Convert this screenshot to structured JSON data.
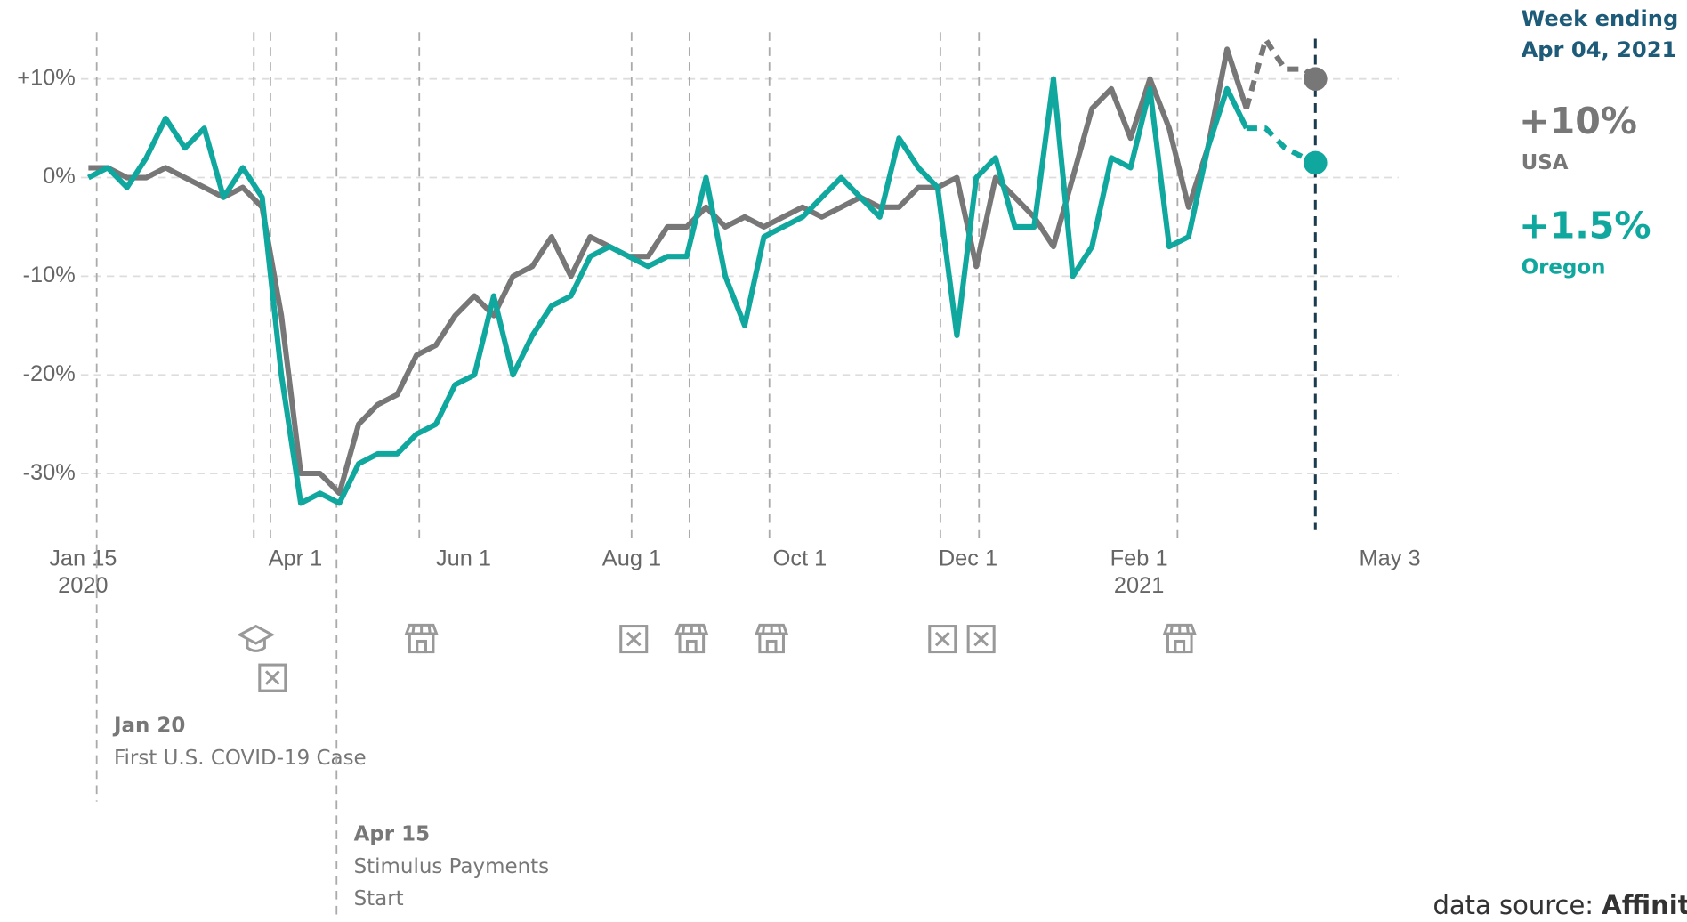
{
  "chart_data": {
    "type": "line",
    "x": [
      "2020-01-15",
      "2020-01-22",
      "2020-01-29",
      "2020-02-05",
      "2020-02-12",
      "2020-02-19",
      "2020-02-26",
      "2020-03-04",
      "2020-03-11",
      "2020-03-18",
      "2020-03-25",
      "2020-04-01",
      "2020-04-08",
      "2020-04-15",
      "2020-04-22",
      "2020-04-29",
      "2020-05-06",
      "2020-05-13",
      "2020-05-20",
      "2020-05-27",
      "2020-06-03",
      "2020-06-10",
      "2020-06-17",
      "2020-06-24",
      "2020-07-01",
      "2020-07-08",
      "2020-07-15",
      "2020-07-22",
      "2020-07-29",
      "2020-08-05",
      "2020-08-12",
      "2020-08-19",
      "2020-08-26",
      "2020-09-02",
      "2020-09-09",
      "2020-09-16",
      "2020-09-23",
      "2020-09-30",
      "2020-10-07",
      "2020-10-14",
      "2020-10-21",
      "2020-10-28",
      "2020-11-04",
      "2020-11-11",
      "2020-11-18",
      "2020-11-25",
      "2020-12-02",
      "2020-12-09",
      "2020-12-16",
      "2020-12-23",
      "2020-12-30",
      "2021-01-06",
      "2021-01-13",
      "2021-01-20",
      "2021-01-27",
      "2021-02-03",
      "2021-02-10",
      "2021-02-17",
      "2021-02-24",
      "2021-03-03",
      "2021-03-10",
      "2021-03-17",
      "2021-03-24",
      "2021-03-31",
      "2021-04-04"
    ],
    "series": [
      {
        "name": "USA",
        "color": "#777777",
        "end_label": "+10%",
        "values": [
          1,
          1,
          0,
          0,
          1,
          0,
          -1,
          -2,
          -1,
          -3,
          -14,
          -30,
          -30,
          -32,
          -25,
          -23,
          -22,
          -18,
          -17,
          -14,
          -12,
          -14,
          -10,
          -9,
          -6,
          -10,
          -6,
          -7,
          -8,
          -8,
          -5,
          -5,
          -3,
          -5,
          -4,
          -5,
          -4,
          -3,
          -4,
          -3,
          -2,
          -3,
          -3,
          -1,
          -1,
          0,
          -9,
          0,
          -2,
          -4,
          -7,
          0,
          7,
          9,
          4,
          10,
          5,
          -3,
          3,
          13,
          7,
          14,
          11,
          11,
          10
        ]
      },
      {
        "name": "Oregon",
        "color": "#10a89e",
        "end_label": "+1.5%",
        "values": [
          0,
          1,
          -1,
          2,
          6,
          3,
          5,
          -2,
          1,
          -2,
          -20,
          -33,
          -32,
          -33,
          -29,
          -28,
          -28,
          -26,
          -25,
          -21,
          -20,
          -12,
          -20,
          -16,
          -13,
          -12,
          -8,
          -7,
          -8,
          -9,
          -8,
          -8,
          0,
          -10,
          -15,
          -6,
          -5,
          -4,
          -2,
          0,
          -2,
          -4,
          4,
          1,
          -1,
          -16,
          0,
          2,
          -5,
          -5,
          10,
          -10,
          -7,
          2,
          1,
          9,
          -7,
          -6,
          3,
          9,
          5,
          5,
          3,
          2,
          1.5
        ]
      }
    ],
    "dashed_from": "2021-03-10",
    "xlim": [
      "2020-01-15",
      "2021-05-03"
    ],
    "xticks": [
      {
        "value": "2020-01-15",
        "label": "Jan 15\n2020"
      },
      {
        "value": "2020-04-01",
        "label": "Apr 1"
      },
      {
        "value": "2020-06-01",
        "label": "Jun 1"
      },
      {
        "value": "2020-08-01",
        "label": "Aug 1"
      },
      {
        "value": "2020-10-01",
        "label": "Oct 1"
      },
      {
        "value": "2020-12-01",
        "label": "Dec 1"
      },
      {
        "value": "2021-02-01",
        "label": "Feb 1\n2021"
      },
      {
        "value": "2021-05-03",
        "label": "May 3"
      }
    ],
    "ylim": [
      -35,
      15
    ],
    "yticks": [
      {
        "value": 10,
        "label": "+10%"
      },
      {
        "value": 0,
        "label": "0%"
      },
      {
        "value": -10,
        "label": "-10%"
      },
      {
        "value": -20,
        "label": "-20%"
      },
      {
        "value": -30,
        "label": "-30%"
      }
    ],
    "grid": true,
    "events": [
      {
        "date": "2020-01-18",
        "title": "Jan 20",
        "lines": [
          "First U.S. COVID-19 Case"
        ]
      },
      {
        "date": "2020-03-15",
        "icon": "school"
      },
      {
        "date": "2020-03-21",
        "icon": "closed"
      },
      {
        "date": "2020-04-14",
        "title": "Apr 15",
        "lines": [
          "Stimulus Payments",
          "Start"
        ]
      },
      {
        "date": "2020-05-14",
        "icon": "store"
      },
      {
        "date": "2020-07-30",
        "icon": "closed"
      },
      {
        "date": "2020-08-20",
        "icon": "store"
      },
      {
        "date": "2020-09-18",
        "icon": "store"
      },
      {
        "date": "2020-11-19",
        "icon": "closed"
      },
      {
        "date": "2020-12-03",
        "icon": "closed"
      },
      {
        "date": "2021-02-13",
        "icon": "store"
      }
    ],
    "week_label": "Week ending",
    "week_date": "Apr 04, 2021",
    "source_label": "data source:",
    "source_name": "Affinity"
  }
}
